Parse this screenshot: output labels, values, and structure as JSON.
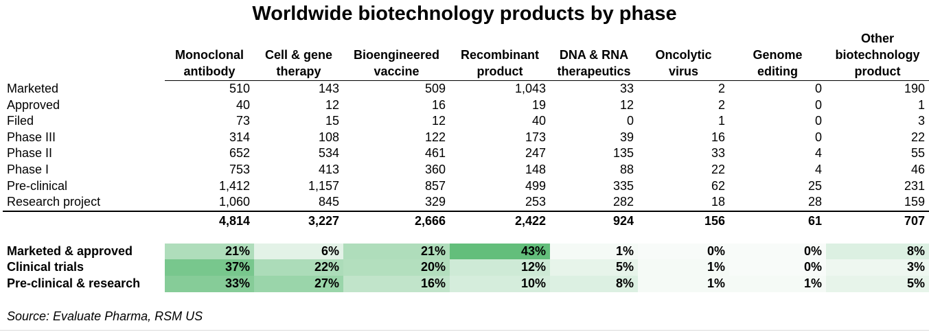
{
  "chart_data": {
    "type": "table",
    "title": "Worldwide biotechnology products by phase",
    "columns": [
      "Monoclonal antibody",
      "Cell & gene therapy",
      "Bioengineered vaccine",
      "Recombinant product",
      "DNA & RNA therapeutics",
      "Oncolytic virus",
      "Genome editing",
      "Other biotechnology product"
    ],
    "rows": [
      {
        "label": "Marketed",
        "values": [
          "510",
          "143",
          "509",
          "1,043",
          "33",
          "2",
          "0",
          "190"
        ]
      },
      {
        "label": "Approved",
        "values": [
          "40",
          "12",
          "16",
          "19",
          "12",
          "2",
          "0",
          "1"
        ]
      },
      {
        "label": "Filed",
        "values": [
          "73",
          "15",
          "12",
          "40",
          "0",
          "1",
          "0",
          "3"
        ]
      },
      {
        "label": "Phase III",
        "values": [
          "314",
          "108",
          "122",
          "173",
          "39",
          "16",
          "0",
          "22"
        ]
      },
      {
        "label": "Phase II",
        "values": [
          "652",
          "534",
          "461",
          "247",
          "135",
          "33",
          "4",
          "55"
        ]
      },
      {
        "label": "Phase I",
        "values": [
          "753",
          "413",
          "360",
          "148",
          "88",
          "22",
          "4",
          "46"
        ]
      },
      {
        "label": "Pre-clinical",
        "values": [
          "1,412",
          "1,157",
          "857",
          "499",
          "335",
          "62",
          "25",
          "231"
        ]
      },
      {
        "label": "Research project",
        "values": [
          "1,060",
          "845",
          "329",
          "253",
          "282",
          "18",
          "28",
          "159"
        ]
      }
    ],
    "totals": [
      "4,814",
      "3,227",
      "2,666",
      "2,422",
      "924",
      "156",
      "61",
      "707"
    ],
    "percent_rows": [
      {
        "label": "Marketed & approved",
        "values": [
          21,
          6,
          21,
          43,
          1,
          0,
          0,
          8
        ]
      },
      {
        "label": "Clinical trials",
        "values": [
          37,
          22,
          20,
          12,
          5,
          1,
          0,
          3
        ]
      },
      {
        "label": "Pre-clinical & research",
        "values": [
          33,
          27,
          16,
          10,
          8,
          1,
          1,
          5
        ]
      }
    ],
    "heatmap_colors": {
      "low": "#f8fbf9",
      "high": "#63be7b"
    },
    "source": "Source: Evaluate Pharma, RSM US"
  }
}
